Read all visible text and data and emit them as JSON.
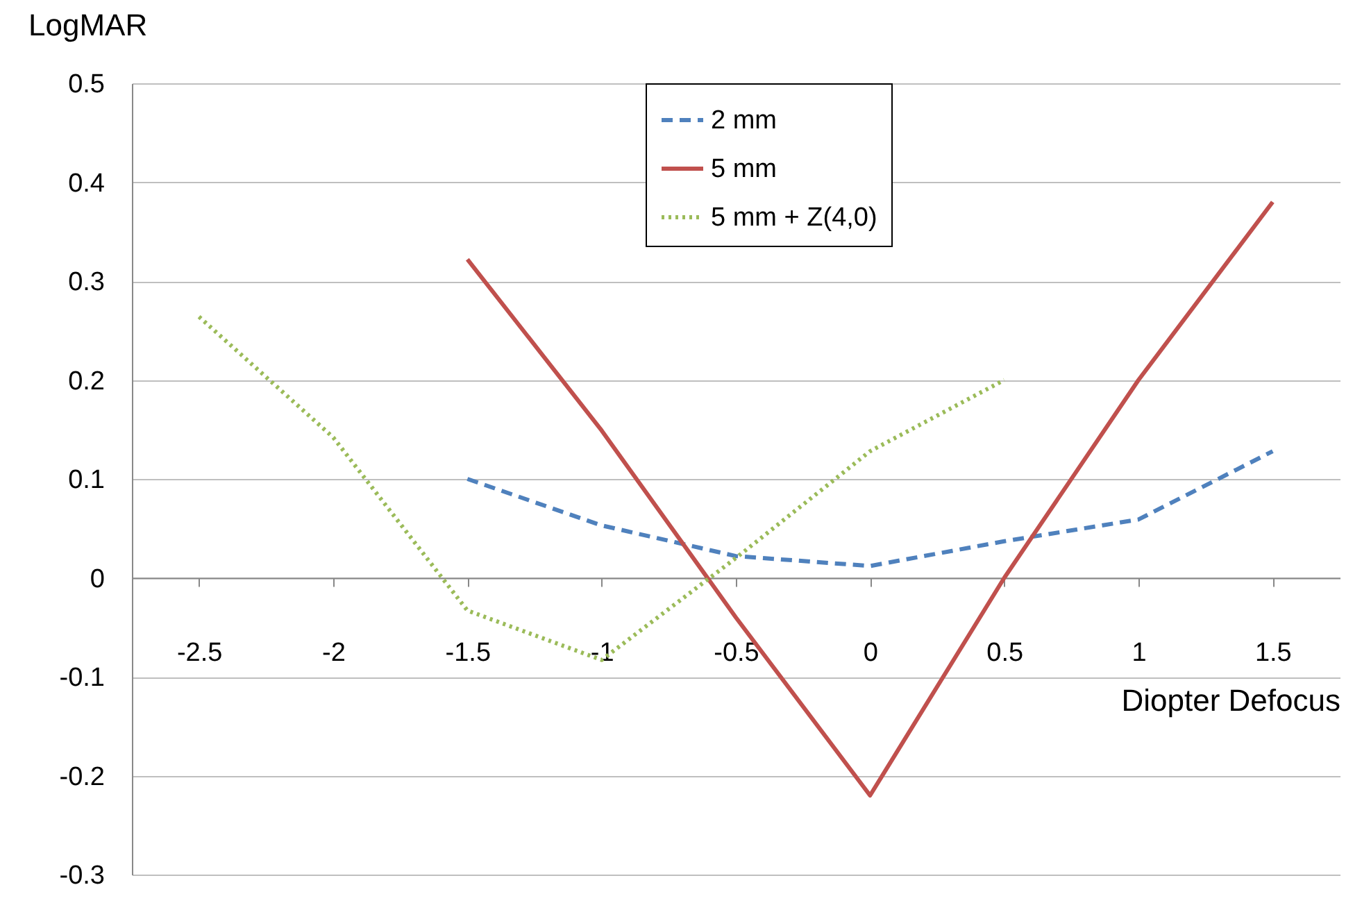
{
  "chart_data": {
    "type": "line",
    "xlabel": "Diopter Defocus",
    "ylabel": "LogMAR",
    "categories": [
      "-2.5",
      "-2",
      "-1.5",
      "-1",
      "-0.5",
      "0",
      "0.5",
      "1",
      "1.5"
    ],
    "series": [
      {
        "name": "2 mm",
        "color": "#4f81bd",
        "line_style": "dashed",
        "values": [
          null,
          null,
          0.1,
          0.053,
          0.022,
          0.012,
          0.037,
          0.059,
          0.128
        ]
      },
      {
        "name": "5 mm",
        "color": "#c0504d",
        "line_style": "solid",
        "values": [
          null,
          null,
          0.322,
          0.149,
          -0.04,
          -0.22,
          0.0,
          0.2,
          0.38
        ]
      },
      {
        "name": "5 mm + Z(4,0)",
        "color": "#9bbb59",
        "line_style": "dotted",
        "values": [
          0.264,
          0.142,
          -0.033,
          -0.083,
          0.02,
          0.128,
          0.2,
          null,
          null
        ]
      }
    ],
    "ylim": [
      -0.3,
      0.5
    ],
    "yticks": [
      -0.3,
      -0.2,
      -0.1,
      0,
      0.1,
      0.2,
      0.3,
      0.4,
      0.5
    ],
    "grid": "y",
    "legend": "top",
    "marker": "none"
  }
}
